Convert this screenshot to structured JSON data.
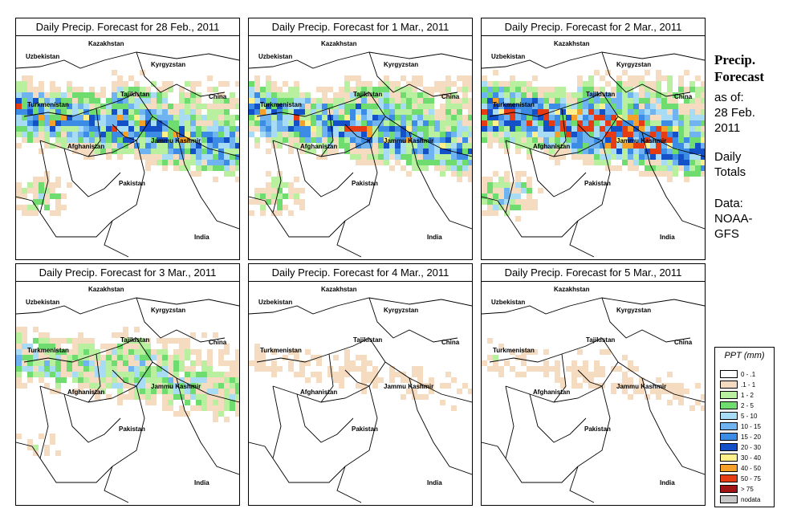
{
  "panels": [
    {
      "title": "Daily Precip. Forecast for  28 Feb., 2011",
      "intensity": "high"
    },
    {
      "title": "Daily Precip. Forecast for  1 Mar., 2011",
      "intensity": "high"
    },
    {
      "title": "Daily Precip. Forecast for  2 Mar., 2011",
      "intensity": "peak"
    },
    {
      "title": "Daily Precip. Forecast for  3 Mar., 2011",
      "intensity": "medium"
    },
    {
      "title": "Daily Precip. Forecast for  4 Mar., 2011",
      "intensity": "low"
    },
    {
      "title": "Daily Precip. Forecast for  5 Mar., 2011",
      "intensity": "low"
    }
  ],
  "countries": {
    "uzbekistan": "Uzbekistan",
    "kazakhstan": "Kazakhstan",
    "kyrgyzstan": "Kyrgyzstan",
    "tajikistan": "Tajikistan",
    "turkmenistan": "Turkmenistan",
    "china": "China",
    "afghanistan": "Afghanistan",
    "jammu_kashmir": "Jammu Kashmir",
    "pakistan": "Pakistan",
    "india": "India"
  },
  "sidebar": {
    "heading_line1": "Precip.",
    "heading_line2": "Forecast",
    "asof_line1": "as of:",
    "asof_line2": "28 Feb.",
    "asof_line3": "2011",
    "type_line1": "Daily",
    "type_line2": "Totals",
    "source_line1": "Data:",
    "source_line2": "NOAA-",
    "source_line3": "GFS"
  },
  "legend": {
    "title": "PPT (mm)",
    "items": [
      {
        "label": "0 - .1",
        "color": "#ffffff"
      },
      {
        "label": ".1 - 1",
        "color": "#f5dcc0"
      },
      {
        "label": "1 - 2",
        "color": "#b8f0a0"
      },
      {
        "label": "2 - 5",
        "color": "#6fdc6f"
      },
      {
        "label": "5 - 10",
        "color": "#a8dcf5"
      },
      {
        "label": "10 - 15",
        "color": "#6fb4f0"
      },
      {
        "label": "15 - 20",
        "color": "#3c8ce6"
      },
      {
        "label": "20 - 30",
        "color": "#1450c8"
      },
      {
        "label": "30 - 40",
        "color": "#fff08c"
      },
      {
        "label": "40 - 50",
        "color": "#f5a028"
      },
      {
        "label": "50 - 75",
        "color": "#e63c14"
      },
      {
        "label": "> 75",
        "color": "#a01414"
      },
      {
        "label": "nodata",
        "color": "#c8c8c8"
      }
    ]
  }
}
